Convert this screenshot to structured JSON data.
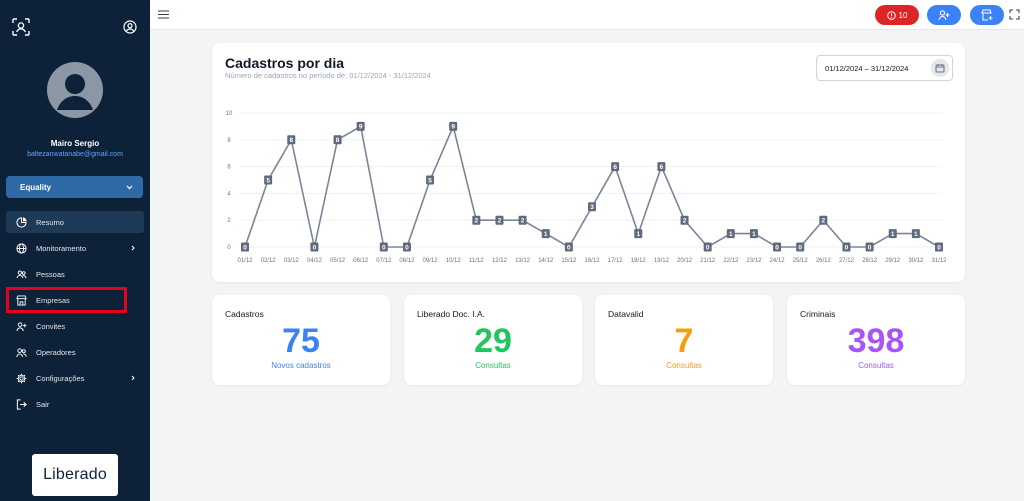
{
  "sidebar": {
    "user": {
      "name": "Mairo Sergio",
      "email": "baltezanwatanabe@gmail.com"
    },
    "company_select": {
      "value": "Equality"
    },
    "nav": [
      {
        "label": "Resumo",
        "icon": "pie-chart-icon",
        "active": true
      },
      {
        "label": "Monitoramento",
        "icon": "globe-icon",
        "has_submenu": true
      },
      {
        "label": "Pessoas",
        "icon": "users-icon"
      },
      {
        "label": "Empresas",
        "icon": "store-icon"
      },
      {
        "label": "Convites",
        "icon": "user-plus-icon"
      },
      {
        "label": "Operadores",
        "icon": "user-group-icon"
      },
      {
        "label": "Configurações",
        "icon": "gear-icon",
        "has_submenu": true
      },
      {
        "label": "Sair",
        "icon": "logout-icon"
      }
    ],
    "brand": {
      "text": "Liberado"
    },
    "highlight_color": "#e8001c"
  },
  "topbar": {
    "alert_count": "10",
    "alert_color": "#dc2626",
    "accent_color": "#3b82f6"
  },
  "chart": {
    "title": "Cadastros por dia",
    "subtitle": "Número de cadastros no período de: 01/12/2024 - 31/12/2024",
    "date_range": "01/12/2024 – 31/12/2024"
  },
  "chart_data": {
    "type": "line",
    "title": "Cadastros por dia",
    "subtitle": "Número de cadastros no período de: 01/12/2024 - 31/12/2024",
    "x": [
      "01/12",
      "02/12",
      "03/12",
      "04/12",
      "05/12",
      "06/12",
      "07/12",
      "08/12",
      "09/12",
      "10/12",
      "11/12",
      "12/12",
      "13/12",
      "14/12",
      "15/12",
      "16/12",
      "17/12",
      "18/12",
      "19/12",
      "20/12",
      "21/12",
      "22/12",
      "23/12",
      "24/12",
      "25/12",
      "26/12",
      "27/12",
      "28/12",
      "29/12",
      "30/12",
      "31/12"
    ],
    "values": [
      0,
      5,
      8,
      0,
      8,
      9,
      0,
      0,
      5,
      9,
      2,
      2,
      2,
      1,
      0,
      3,
      6,
      1,
      6,
      2,
      0,
      1,
      1,
      0,
      0,
      2,
      0,
      0,
      1,
      1,
      0
    ],
    "y_ticks": [
      0,
      2,
      4,
      6,
      8,
      10
    ],
    "ylim": [
      0,
      10
    ],
    "grid": true,
    "line_color": "#7b8598",
    "label_bg": "#5f6b7d"
  },
  "stats": [
    {
      "title": "Cadastros",
      "value": "75",
      "sub": "Novos cadastros",
      "color": "#3b82f6"
    },
    {
      "title": "Liberado Doc. I.A.",
      "value": "29",
      "sub": "Consultas",
      "color": "#22c55e"
    },
    {
      "title": "Datavalid",
      "value": "7",
      "sub": "Consultas",
      "color": "#f59e0b"
    },
    {
      "title": "Criminais",
      "value": "398",
      "sub": "Consultas",
      "color": "#a855f7"
    }
  ]
}
